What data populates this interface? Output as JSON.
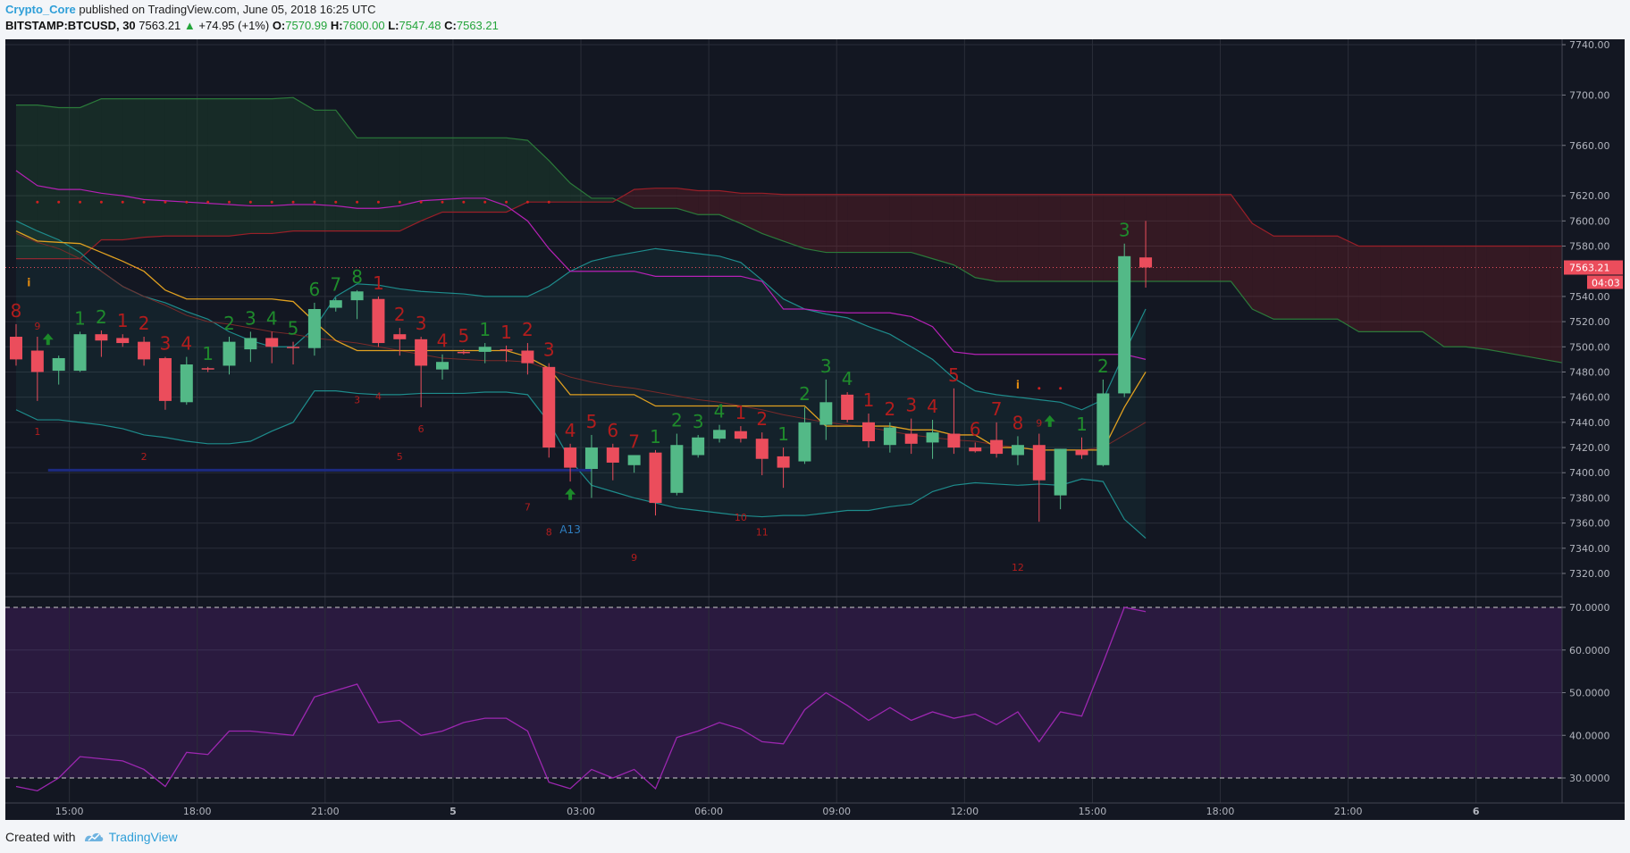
{
  "header": {
    "author": "Crypto_Core",
    "published": "published on TradingView.com, June 05, 2018 16:25 UTC",
    "symbol": "BITSTAMP:BTCUSD, 30",
    "last": "7563.21",
    "change": "+74.95 (+1%)",
    "o_label": "O:",
    "o_value": "7570.99",
    "h_label": "H:",
    "h_value": "7600.00",
    "l_label": "L:",
    "l_value": "7547.48",
    "c_label": "C:",
    "c_value": "7563.21"
  },
  "footer": {
    "created_with": "Created with",
    "brand": "TradingView"
  },
  "colors": {
    "up": "#53b987",
    "down": "#eb4d5c",
    "bg": "#131722",
    "rsi": "#9c27b0",
    "seq_up": "#1f8b2c",
    "seq_down": "#b21d1d"
  },
  "chart_data": {
    "type": "candlestick",
    "price_axis": {
      "min": 7300,
      "max": 7750,
      "ticks": [
        "7740.00",
        "7700.00",
        "7660.00",
        "7620.00",
        "7600.00",
        "7580.00",
        "7540.00",
        "7520.00",
        "7500.00",
        "7480.00",
        "7460.00",
        "7440.00",
        "7420.00",
        "7400.00",
        "7380.00",
        "7360.00",
        "7340.00",
        "7320.00"
      ]
    },
    "price_label": "7563.21",
    "countdown_label": "04:03",
    "rsi_axis": {
      "min": 24,
      "max": 73,
      "ticks": [
        "70.0000",
        "60.0000",
        "50.0000",
        "40.0000",
        "30.0000"
      ],
      "levels": [
        70,
        30
      ]
    },
    "time_labels": [
      {
        "idx": 2.5,
        "text": "15:00",
        "bold": false
      },
      {
        "idx": 8.5,
        "text": "18:00",
        "bold": false
      },
      {
        "idx": 14.5,
        "text": "21:00",
        "bold": false
      },
      {
        "idx": 20.5,
        "text": "5",
        "bold": true
      },
      {
        "idx": 26.5,
        "text": "03:00",
        "bold": false
      },
      {
        "idx": 32.5,
        "text": "06:00",
        "bold": false
      },
      {
        "idx": 38.5,
        "text": "09:00",
        "bold": false
      },
      {
        "idx": 44.5,
        "text": "12:00",
        "bold": false
      },
      {
        "idx": 50.5,
        "text": "15:00",
        "bold": false
      },
      {
        "idx": 56.5,
        "text": "18:00",
        "bold": false
      },
      {
        "idx": 62.5,
        "text": "21:00",
        "bold": false
      },
      {
        "idx": 68.5,
        "text": "6",
        "bold": true
      }
    ],
    "candles": [
      {
        "o": 7508,
        "h": 7518,
        "l": 7485,
        "c": 7490
      },
      {
        "o": 7497,
        "h": 7508,
        "l": 7457,
        "c": 7480
      },
      {
        "o": 7481,
        "h": 7493,
        "l": 7470,
        "c": 7491
      },
      {
        "o": 7481,
        "h": 7512,
        "l": 7480,
        "c": 7510
      },
      {
        "o": 7510,
        "h": 7513,
        "l": 7492,
        "c": 7505
      },
      {
        "o": 7507,
        "h": 7510,
        "l": 7500,
        "c": 7503
      },
      {
        "o": 7504,
        "h": 7508,
        "l": 7485,
        "c": 7490
      },
      {
        "o": 7491,
        "h": 7492,
        "l": 7450,
        "c": 7457
      },
      {
        "o": 7456,
        "h": 7492,
        "l": 7454,
        "c": 7486
      },
      {
        "o": 7483,
        "h": 7484,
        "l": 7480,
        "c": 7482
      },
      {
        "o": 7485,
        "h": 7508,
        "l": 7478,
        "c": 7504
      },
      {
        "o": 7498,
        "h": 7512,
        "l": 7488,
        "c": 7507
      },
      {
        "o": 7507,
        "h": 7512,
        "l": 7487,
        "c": 7500
      },
      {
        "o": 7500,
        "h": 7504,
        "l": 7486,
        "c": 7499
      },
      {
        "o": 7499,
        "h": 7535,
        "l": 7493,
        "c": 7530
      },
      {
        "o": 7531,
        "h": 7539,
        "l": 7528,
        "c": 7537
      },
      {
        "o": 7537,
        "h": 7545,
        "l": 7522,
        "c": 7544
      },
      {
        "o": 7538,
        "h": 7540,
        "l": 7500,
        "c": 7503
      },
      {
        "o": 7510,
        "h": 7515,
        "l": 7493,
        "c": 7506
      },
      {
        "o": 7506,
        "h": 7508,
        "l": 7452,
        "c": 7485
      },
      {
        "o": 7482,
        "h": 7494,
        "l": 7474,
        "c": 7488
      },
      {
        "o": 7496,
        "h": 7498,
        "l": 7494,
        "c": 7495
      },
      {
        "o": 7496,
        "h": 7503,
        "l": 7487,
        "c": 7500
      },
      {
        "o": 7498,
        "h": 7501,
        "l": 7488,
        "c": 7497
      },
      {
        "o": 7497,
        "h": 7503,
        "l": 7478,
        "c": 7487
      },
      {
        "o": 7484,
        "h": 7487,
        "l": 7412,
        "c": 7420
      },
      {
        "o": 7420,
        "h": 7423,
        "l": 7393,
        "c": 7404
      },
      {
        "o": 7403,
        "h": 7430,
        "l": 7380,
        "c": 7420
      },
      {
        "o": 7420,
        "h": 7423,
        "l": 7394,
        "c": 7408
      },
      {
        "o": 7406,
        "h": 7414,
        "l": 7400,
        "c": 7414
      },
      {
        "o": 7416,
        "h": 7418,
        "l": 7366,
        "c": 7376
      },
      {
        "o": 7384,
        "h": 7431,
        "l": 7382,
        "c": 7422
      },
      {
        "o": 7414,
        "h": 7430,
        "l": 7412,
        "c": 7428
      },
      {
        "o": 7427,
        "h": 7438,
        "l": 7424,
        "c": 7434
      },
      {
        "o": 7433,
        "h": 7437,
        "l": 7424,
        "c": 7427
      },
      {
        "o": 7427,
        "h": 7432,
        "l": 7398,
        "c": 7411
      },
      {
        "o": 7413,
        "h": 7420,
        "l": 7388,
        "c": 7404
      },
      {
        "o": 7409,
        "h": 7452,
        "l": 7407,
        "c": 7440
      },
      {
        "o": 7438,
        "h": 7474,
        "l": 7426,
        "c": 7456
      },
      {
        "o": 7462,
        "h": 7464,
        "l": 7440,
        "c": 7442
      },
      {
        "o": 7440,
        "h": 7447,
        "l": 7420,
        "c": 7425
      },
      {
        "o": 7422,
        "h": 7440,
        "l": 7416,
        "c": 7436
      },
      {
        "o": 7431,
        "h": 7443,
        "l": 7415,
        "c": 7423
      },
      {
        "o": 7424,
        "h": 7442,
        "l": 7411,
        "c": 7432
      },
      {
        "o": 7431,
        "h": 7467,
        "l": 7415,
        "c": 7420
      },
      {
        "o": 7420,
        "h": 7424,
        "l": 7416,
        "c": 7417
      },
      {
        "o": 7426,
        "h": 7440,
        "l": 7412,
        "c": 7415
      },
      {
        "o": 7414,
        "h": 7429,
        "l": 7406,
        "c": 7422
      },
      {
        "o": 7422,
        "h": 7431,
        "l": 7361,
        "c": 7394
      },
      {
        "o": 7382,
        "h": 7419,
        "l": 7371,
        "c": 7419
      },
      {
        "o": 7418,
        "h": 7428,
        "l": 7411,
        "c": 7414
      },
      {
        "o": 7406,
        "h": 7474,
        "l": 7405,
        "c": 7463
      },
      {
        "o": 7463,
        "h": 7582,
        "l": 7460,
        "c": 7572
      },
      {
        "o": 7571,
        "h": 7600,
        "l": 7547,
        "c": 7563
      }
    ],
    "rsi": [
      28,
      27,
      30,
      35,
      34.5,
      34,
      32,
      28,
      36,
      35.5,
      41,
      41,
      40.5,
      40,
      49,
      50.5,
      52,
      43,
      43.5,
      40,
      41,
      43,
      44,
      44,
      41,
      29,
      27.5,
      32,
      30,
      32,
      27.5,
      39.5,
      41,
      43,
      41.5,
      38.5,
      38,
      46,
      50,
      47,
      43.5,
      46.5,
      43.5,
      45.5,
      44,
      45,
      42.5,
      45.5,
      38.5,
      45.5,
      44.5,
      57,
      70,
      69
    ],
    "ichimoku": {
      "span_a": [
        7692,
        7692,
        7690,
        7690,
        7697,
        7697,
        7697,
        7697,
        7697,
        7697,
        7697,
        7697,
        7697,
        7698,
        7688,
        7688,
        7666,
        7666,
        7666,
        7666,
        7666,
        7666,
        7666,
        7666,
        7664,
        7648,
        7630,
        7618,
        7618,
        7610,
        7610,
        7610,
        7605,
        7605,
        7598,
        7590,
        7584,
        7578,
        7575,
        7575,
        7575,
        7575,
        7575,
        7570,
        7565,
        7555,
        7552,
        7552,
        7552,
        7552,
        7552,
        7552,
        7552,
        7552,
        7552,
        7552,
        7552,
        7552,
        7530,
        7522,
        7522,
        7522,
        7522,
        7512,
        7512,
        7512,
        7512,
        7500,
        7500,
        7498,
        7495,
        7492,
        7489,
        7486,
        7484,
        7483,
        7481
      ],
      "span_b": [
        7570,
        7570,
        7570,
        7570,
        7585,
        7585,
        7587,
        7588,
        7588,
        7588,
        7588,
        7590,
        7590,
        7592,
        7592,
        7592,
        7592,
        7592,
        7592,
        7600,
        7607,
        7607,
        7607,
        7607,
        7615,
        7615,
        7615,
        7615,
        7615,
        7625,
        7626,
        7626,
        7624,
        7624,
        7622,
        7622,
        7621,
        7621,
        7621,
        7621,
        7621,
        7621,
        7621,
        7621,
        7621,
        7621,
        7621,
        7621,
        7621,
        7621,
        7621,
        7621,
        7621,
        7621,
        7621,
        7621,
        7621,
        7621,
        7598,
        7588,
        7588,
        7588,
        7588,
        7580,
        7580,
        7580,
        7580,
        7580,
        7580,
        7580,
        7580,
        7580,
        7580,
        7580,
        7580,
        7580,
        7580
      ],
      "kumo_shift": 0
    },
    "kijun": [
      7592,
      7584,
      7583,
      7582,
      7575,
      7568,
      7560,
      7545,
      7538,
      7538,
      7538,
      7538,
      7538,
      7536,
      7520,
      7505,
      7497,
      7497,
      7497,
      7497,
      7497,
      7497,
      7497,
      7497,
      7492,
      7483,
      7462,
      7462,
      7462,
      7462,
      7453,
      7453,
      7453,
      7453,
      7453,
      7453,
      7453,
      7453,
      7437,
      7437,
      7437,
      7437,
      7434,
      7434,
      7430,
      7430,
      7420,
      7420,
      7418,
      7418,
      7418,
      7418,
      7452,
      7480
    ],
    "tenkan": [
      7593,
      7580,
      7577,
      7576,
      7560,
      7548,
      7543,
      7538,
      7538,
      7540,
      7540,
      7540,
      7540,
      7530,
      7512,
      7500,
      7498,
      7498,
      7498,
      7498,
      7498,
      7498,
      7498,
      7498,
      7490,
      7470,
      7460,
      7460,
      7460,
      7455,
      7453,
      7452,
      7452,
      7452,
      7452,
      7452,
      7452,
      7444,
      7437,
      7437,
      7437,
      7430,
      7430,
      7428,
      7425,
      7423,
      7420,
      7420,
      7418,
      7418,
      7418,
      7418,
      7455,
      7480
    ],
    "ema_dark": [
      7590,
      7583,
      7578,
      7570,
      7560,
      7548,
      7540,
      7533,
      7525,
      7520,
      7518,
      7515,
      7512,
      7510,
      7507,
      7505,
      7503,
      7500,
      7497,
      7494,
      7491,
      7490,
      7489,
      7489,
      7488,
      7482,
      7476,
      7472,
      7469,
      7467,
      7464,
      7461,
      7458,
      7456,
      7453,
      7450,
      7446,
      7443,
      7440,
      7438,
      7436,
      7433,
      7430,
      7428,
      7426,
      7425,
      7422,
      7420,
      7418,
      7418,
      7418,
      7420,
      7430,
      7440
    ],
    "bb_upper": [
      7600,
      7592,
      7585,
      7575,
      7560,
      7548,
      7540,
      7535,
      7528,
      7522,
      7512,
      7505,
      7500,
      7500,
      7515,
      7540,
      7550,
      7549,
      7546,
      7544,
      7543,
      7542,
      7540,
      7540,
      7540,
      7548,
      7560,
      7568,
      7572,
      7575,
      7578,
      7576,
      7574,
      7572,
      7567,
      7553,
      7538,
      7530,
      7526,
      7523,
      7516,
      7510,
      7500,
      7490,
      7475,
      7465,
      7462,
      7460,
      7458,
      7456,
      7450,
      7458,
      7495,
      7530
    ],
    "bb_lower": [
      7450,
      7442,
      7442,
      7440,
      7438,
      7435,
      7430,
      7428,
      7425,
      7423,
      7423,
      7425,
      7433,
      7440,
      7465,
      7465,
      7463,
      7462,
      7462,
      7463,
      7463,
      7463,
      7464,
      7464,
      7462,
      7440,
      7410,
      7390,
      7385,
      7380,
      7376,
      7372,
      7370,
      7368,
      7366,
      7365,
      7366,
      7366,
      7368,
      7370,
      7370,
      7373,
      7375,
      7385,
      7390,
      7392,
      7391,
      7390,
      7391,
      7390,
      7395,
      7393,
      7363,
      7348
    ],
    "bb_basis_mag": [
      7640,
      7628,
      7625,
      7625,
      7622,
      7620,
      7617,
      7616,
      7615,
      7614,
      7613,
      7612,
      7612,
      7613,
      7613,
      7612,
      7610,
      7610,
      7612,
      7616,
      7617,
      7618,
      7618,
      7612,
      7600,
      7578,
      7560,
      7560,
      7560,
      7560,
      7556,
      7556,
      7556,
      7556,
      7556,
      7552,
      7530,
      7530,
      7528,
      7527,
      7527,
      7527,
      7524,
      7516,
      7496,
      7494,
      7494,
      7494,
      7494,
      7494,
      7494,
      7494,
      7494,
      7490
    ],
    "red_dots_level": 7615,
    "blue_line": {
      "value": 7402,
      "from": 1.5,
      "to": 27
    },
    "seq_above": [
      {
        "i": 0,
        "n": "8",
        "d": "down"
      },
      {
        "i": 1,
        "n": "9",
        "d": "down",
        "small": true
      },
      {
        "i": 3,
        "n": "1",
        "d": "up"
      },
      {
        "i": 4,
        "n": "2",
        "d": "up"
      },
      {
        "i": 5,
        "n": "1",
        "d": "down"
      },
      {
        "i": 6,
        "n": "2",
        "d": "down"
      },
      {
        "i": 7,
        "n": "3",
        "d": "down"
      },
      {
        "i": 8,
        "n": "4",
        "d": "down"
      },
      {
        "i": 9,
        "n": "1",
        "d": "up"
      },
      {
        "i": 10,
        "n": "2",
        "d": "up"
      },
      {
        "i": 11,
        "n": "3",
        "d": "up"
      },
      {
        "i": 12,
        "n": "4",
        "d": "up"
      },
      {
        "i": 13,
        "n": "5",
        "d": "up"
      },
      {
        "i": 14,
        "n": "6",
        "d": "up"
      },
      {
        "i": 15,
        "n": "7",
        "d": "up"
      },
      {
        "i": 16,
        "n": "8",
        "d": "up"
      },
      {
        "i": 17,
        "n": "1",
        "d": "down"
      },
      {
        "i": 18,
        "n": "2",
        "d": "down"
      },
      {
        "i": 19,
        "n": "3",
        "d": "down"
      },
      {
        "i": 20,
        "n": "4",
        "d": "down"
      },
      {
        "i": 21,
        "n": "5",
        "d": "down"
      },
      {
        "i": 22,
        "n": "1",
        "d": "up"
      },
      {
        "i": 23,
        "n": "1",
        "d": "down"
      },
      {
        "i": 24,
        "n": "2",
        "d": "down"
      },
      {
        "i": 25,
        "n": "3",
        "d": "down"
      },
      {
        "i": 26,
        "n": "4",
        "d": "down"
      },
      {
        "i": 27,
        "n": "5",
        "d": "down"
      },
      {
        "i": 28,
        "n": "6",
        "d": "down"
      },
      {
        "i": 29,
        "n": "7",
        "d": "down"
      },
      {
        "i": 30,
        "n": "1",
        "d": "up"
      },
      {
        "i": 31,
        "n": "2",
        "d": "up"
      },
      {
        "i": 32,
        "n": "3",
        "d": "up"
      },
      {
        "i": 33,
        "n": "4",
        "d": "up"
      },
      {
        "i": 34,
        "n": "1",
        "d": "down"
      },
      {
        "i": 35,
        "n": "2",
        "d": "down"
      },
      {
        "i": 36,
        "n": "1",
        "d": "up"
      },
      {
        "i": 37,
        "n": "2",
        "d": "up"
      },
      {
        "i": 38,
        "n": "3",
        "d": "up"
      },
      {
        "i": 39,
        "n": "4",
        "d": "up"
      },
      {
        "i": 40,
        "n": "1",
        "d": "down"
      },
      {
        "i": 41,
        "n": "2",
        "d": "down"
      },
      {
        "i": 42,
        "n": "3",
        "d": "down"
      },
      {
        "i": 43,
        "n": "4",
        "d": "down"
      },
      {
        "i": 44,
        "n": "5",
        "d": "down"
      },
      {
        "i": 45,
        "n": "6",
        "d": "down"
      },
      {
        "i": 46,
        "n": "7",
        "d": "down"
      },
      {
        "i": 47,
        "n": "8",
        "d": "down"
      },
      {
        "i": 48,
        "n": "9",
        "d": "down",
        "small": true
      },
      {
        "i": 50,
        "n": "1",
        "d": "up"
      },
      {
        "i": 51,
        "n": "2",
        "d": "up"
      },
      {
        "i": 52,
        "n": "3",
        "d": "up"
      }
    ],
    "seq_below": [
      {
        "i": 1,
        "n": "1",
        "p": 7430
      },
      {
        "i": 6,
        "n": "2",
        "p": 7410
      },
      {
        "i": 16,
        "n": "3",
        "p": 7455
      },
      {
        "i": 17,
        "n": "4",
        "p": 7458
      },
      {
        "i": 18,
        "n": "5",
        "p": 7410
      },
      {
        "i": 19,
        "n": "6",
        "p": 7432
      },
      {
        "i": 24,
        "n": "7",
        "p": 7370
      },
      {
        "i": 25,
        "n": "8",
        "p": 7350
      },
      {
        "i": 29,
        "n": "9",
        "p": 7330
      },
      {
        "i": 34,
        "n": "10",
        "p": 7362
      },
      {
        "i": 35,
        "n": "11",
        "p": 7350
      },
      {
        "i": 47,
        "n": "12",
        "p": 7322
      }
    ],
    "up_arrows": [
      {
        "i": 1.5,
        "p": 7505
      },
      {
        "i": 26,
        "p": 7382
      },
      {
        "i": 48.5,
        "p": 7440
      }
    ],
    "a13_label": {
      "i": 26,
      "text": "A13"
    },
    "info_marks": [
      {
        "i": 0.6,
        "p": 7548,
        "t": "i"
      },
      {
        "i": 47,
        "p": 7467,
        "t": "i"
      }
    ],
    "small_dots": [
      {
        "i": 48,
        "p": 7467
      },
      {
        "i": 49,
        "p": 7467
      }
    ]
  }
}
